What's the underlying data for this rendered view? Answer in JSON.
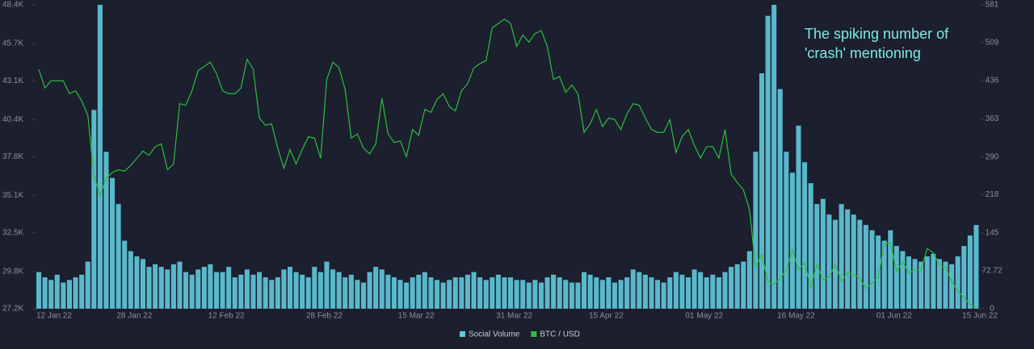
{
  "chart_data": {
    "type": "bar-line",
    "annotation": [
      "The spiking number of",
      "'crash' mentioning"
    ],
    "x": [
      "2022-01-12",
      "2022-01-13",
      "2022-01-14",
      "2022-01-15",
      "2022-01-16",
      "2022-01-17",
      "2022-01-18",
      "2022-01-19",
      "2022-01-20",
      "2022-01-21",
      "2022-01-22",
      "2022-01-23",
      "2022-01-24",
      "2022-01-25",
      "2022-01-26",
      "2022-01-27",
      "2022-01-28",
      "2022-01-29",
      "2022-01-30",
      "2022-01-31",
      "2022-02-01",
      "2022-02-02",
      "2022-02-03",
      "2022-02-04",
      "2022-02-05",
      "2022-02-06",
      "2022-02-07",
      "2022-02-08",
      "2022-02-09",
      "2022-02-10",
      "2022-02-11",
      "2022-02-12",
      "2022-02-13",
      "2022-02-14",
      "2022-02-15",
      "2022-02-16",
      "2022-02-17",
      "2022-02-18",
      "2022-02-19",
      "2022-02-20",
      "2022-02-21",
      "2022-02-22",
      "2022-02-23",
      "2022-02-24",
      "2022-02-25",
      "2022-02-26",
      "2022-02-27",
      "2022-02-28",
      "2022-03-01",
      "2022-03-02",
      "2022-03-03",
      "2022-03-04",
      "2022-03-05",
      "2022-03-06",
      "2022-03-07",
      "2022-03-08",
      "2022-03-09",
      "2022-03-10",
      "2022-03-11",
      "2022-03-12",
      "2022-03-13",
      "2022-03-14",
      "2022-03-15",
      "2022-03-16",
      "2022-03-17",
      "2022-03-18",
      "2022-03-19",
      "2022-03-20",
      "2022-03-21",
      "2022-03-22",
      "2022-03-23",
      "2022-03-24",
      "2022-03-25",
      "2022-03-26",
      "2022-03-27",
      "2022-03-28",
      "2022-03-29",
      "2022-03-30",
      "2022-03-31",
      "2022-04-01",
      "2022-04-02",
      "2022-04-03",
      "2022-04-04",
      "2022-04-05",
      "2022-04-06",
      "2022-04-07",
      "2022-04-08",
      "2022-04-09",
      "2022-04-10",
      "2022-04-11",
      "2022-04-12",
      "2022-04-13",
      "2022-04-14",
      "2022-04-15",
      "2022-04-16",
      "2022-04-17",
      "2022-04-18",
      "2022-04-19",
      "2022-04-20",
      "2022-04-21",
      "2022-04-22",
      "2022-04-23",
      "2022-04-24",
      "2022-04-25",
      "2022-04-26",
      "2022-04-27",
      "2022-04-28",
      "2022-04-29",
      "2022-04-30",
      "2022-05-01",
      "2022-05-02",
      "2022-05-03",
      "2022-05-04",
      "2022-05-05",
      "2022-05-06",
      "2022-05-07",
      "2022-05-08",
      "2022-05-09",
      "2022-05-10",
      "2022-05-11",
      "2022-05-12",
      "2022-05-13",
      "2022-05-14",
      "2022-05-15",
      "2022-05-16",
      "2022-05-17",
      "2022-05-18",
      "2022-05-19",
      "2022-05-20",
      "2022-05-21",
      "2022-05-22",
      "2022-05-23",
      "2022-05-24",
      "2022-05-25",
      "2022-05-26",
      "2022-05-27",
      "2022-05-28",
      "2022-05-29",
      "2022-05-30",
      "2022-05-31",
      "2022-06-01",
      "2022-06-02",
      "2022-06-03",
      "2022-06-04",
      "2022-06-05",
      "2022-06-06",
      "2022-06-07",
      "2022-06-08",
      "2022-06-09",
      "2022-06-10",
      "2022-06-11",
      "2022-06-12",
      "2022-06-13",
      "2022-06-14"
    ],
    "xlim": [
      "2022-01-12",
      "2022-06-15"
    ],
    "xticks": [
      {
        "value": "2022-01-12",
        "label": "12 Jan 22"
      },
      {
        "value": "2022-01-28",
        "label": "28 Jan 22"
      },
      {
        "value": "2022-02-12",
        "label": "12 Feb 22"
      },
      {
        "value": "2022-02-28",
        "label": "28 Feb 22"
      },
      {
        "value": "2022-03-15",
        "label": "15 Mar 22"
      },
      {
        "value": "2022-03-31",
        "label": "31 Mar 22"
      },
      {
        "value": "2022-04-15",
        "label": "15 Apr 22"
      },
      {
        "value": "2022-05-01",
        "label": "01 May 22"
      },
      {
        "value": "2022-05-16",
        "label": "16 May 22"
      },
      {
        "value": "2022-06-01",
        "label": "01 Jun 22"
      },
      {
        "value": "2022-06-15",
        "label": "15 Jun 22"
      }
    ],
    "ylim": [
      27200,
      48400
    ],
    "yticks": [
      {
        "value": 27200,
        "label": "27.2K"
      },
      {
        "value": 29800,
        "label": "29.8K"
      },
      {
        "value": 32500,
        "label": "32.5K"
      },
      {
        "value": 35100,
        "label": "35.1K"
      },
      {
        "value": 37800,
        "label": "37.8K"
      },
      {
        "value": 40400,
        "label": "40.4K"
      },
      {
        "value": 43100,
        "label": "43.1K"
      },
      {
        "value": 45700,
        "label": "45.7K"
      },
      {
        "value": 48400,
        "label": "48.4K"
      }
    ],
    "y2lim": [
      0,
      581
    ],
    "y2ticks": [
      0,
      72.72,
      145,
      218,
      290,
      363,
      436,
      509,
      581
    ],
    "legend": "bottom",
    "series": [
      {
        "name": "Social Volume",
        "type": "bar",
        "axis": "y2",
        "color": "#62c9dd",
        "values": [
          70,
          60,
          55,
          65,
          50,
          55,
          60,
          65,
          90,
          380,
          581,
          300,
          250,
          200,
          130,
          110,
          100,
          95,
          80,
          85,
          80,
          75,
          85,
          90,
          70,
          65,
          75,
          80,
          85,
          70,
          70,
          80,
          60,
          65,
          75,
          65,
          70,
          60,
          55,
          60,
          75,
          80,
          70,
          65,
          60,
          80,
          70,
          90,
          75,
          70,
          60,
          65,
          55,
          50,
          70,
          80,
          75,
          65,
          60,
          55,
          50,
          60,
          65,
          70,
          60,
          55,
          50,
          55,
          60,
          60,
          65,
          70,
          60,
          55,
          60,
          65,
          60,
          60,
          55,
          55,
          50,
          55,
          50,
          60,
          65,
          60,
          55,
          50,
          50,
          70,
          65,
          60,
          55,
          60,
          50,
          55,
          60,
          75,
          70,
          65,
          60,
          55,
          50,
          60,
          70,
          65,
          60,
          75,
          70,
          60,
          65,
          60,
          70,
          80,
          85,
          90,
          110,
          300,
          450,
          560,
          581,
          420,
          300,
          260,
          350,
          280,
          240,
          200,
          210,
          180,
          170,
          200,
          190,
          180,
          170,
          160,
          150,
          140,
          130,
          150,
          120,
          110,
          100,
          95,
          90,
          100,
          105,
          95,
          90,
          85,
          100,
          120,
          140,
          160
        ]
      },
      {
        "name": "BTC / USD",
        "type": "line",
        "color": "#2bbf3c",
        "values": [
          43900,
          42600,
          43100,
          43100,
          43100,
          42200,
          42400,
          41700,
          40700,
          36500,
          35100,
          36300,
          36700,
          36900,
          36800,
          37200,
          37700,
          38200,
          37900,
          38500,
          38700,
          36900,
          37300,
          41500,
          41400,
          42400,
          43800,
          44100,
          44400,
          43600,
          42400,
          42200,
          42200,
          42600,
          44600,
          43900,
          40500,
          40000,
          40100,
          38400,
          37000,
          38300,
          37300,
          38300,
          39200,
          39100,
          37700,
          43200,
          44400,
          44000,
          42500,
          39100,
          39400,
          38400,
          38000,
          38700,
          41900,
          39400,
          38800,
          38900,
          37800,
          39700,
          39300,
          41100,
          40900,
          41800,
          42200,
          41300,
          41000,
          42400,
          42900,
          44000,
          44300,
          44500,
          46800,
          47100,
          47400,
          47100,
          45500,
          46300,
          45800,
          46400,
          46600,
          45500,
          43200,
          43400,
          42300,
          42800,
          42200,
          39500,
          40100,
          41100,
          39900,
          40500,
          40400,
          39700,
          40800,
          41500,
          41400,
          40500,
          39700,
          39500,
          39500,
          40400,
          38100,
          39200,
          39700,
          38600,
          37700,
          38500,
          38500,
          37700,
          39700,
          36600,
          36000,
          35500,
          34100,
          30100,
          31000,
          29100,
          28900,
          29300,
          29900,
          31300,
          29900,
          30400,
          28700,
          30300,
          29200,
          29400,
          30300,
          29100,
          29700,
          29600,
          29300,
          28600,
          29000,
          29400,
          31700,
          31800,
          29800,
          30500,
          29700,
          29900,
          29900,
          31400,
          31100,
          30200,
          30100,
          29100,
          28400,
          28000,
          27500,
          27300
        ]
      }
    ]
  }
}
